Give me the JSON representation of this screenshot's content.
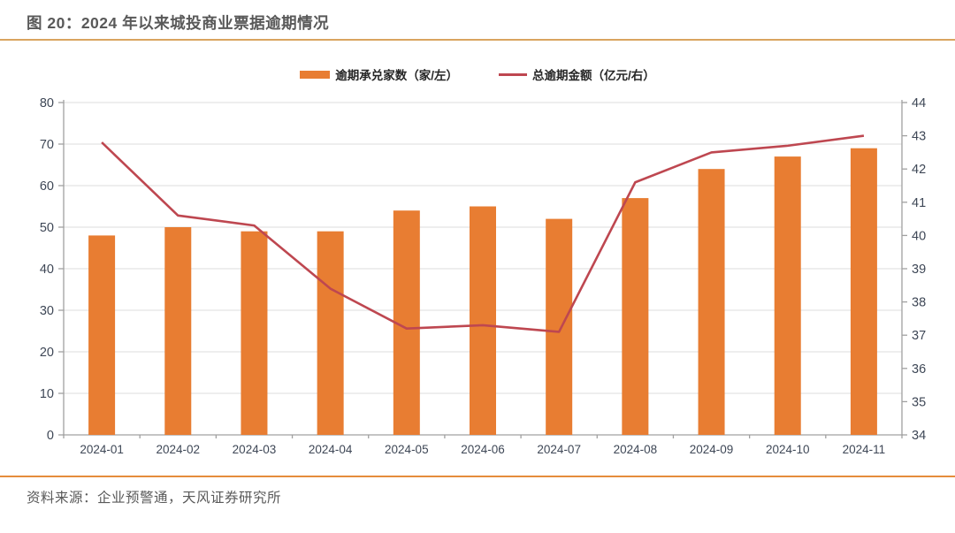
{
  "figure": {
    "title": "图 20：2024 年以来城投商业票据逾期情况",
    "source": "资料来源：企业预警通，天风证券研究所"
  },
  "legend": [
    {
      "label": "逾期承兑家数（家/左）",
      "swatch": "bar-swatch",
      "color": "#E87D32"
    },
    {
      "label": "总逾期金额（亿元/右）",
      "swatch": "line-swatch",
      "color": "#BE4750"
    }
  ],
  "colors": {
    "bar": "#E87D32",
    "line": "#BE4750",
    "grid": "#E8E8E8",
    "axis_line": "#A0A0A0",
    "tick_label": "#3E4756",
    "title_text": "#595959",
    "top_rule": "#D9A45F",
    "bottom_rule": "#E58C3C"
  },
  "chart_data": {
    "type": "bar",
    "subtype": "bar+line-dual-axis",
    "title": "图 20：2024 年以来城投商业票据逾期情况",
    "categories": [
      "2024-01",
      "2024-02",
      "2024-03",
      "2024-04",
      "2024-05",
      "2024-06",
      "2024-07",
      "2024-08",
      "2024-09",
      "2024-10",
      "2024-11"
    ],
    "series": [
      {
        "name": "逾期承兑家数（家/左）",
        "type": "bar",
        "axis": "left",
        "color": "#E87D32",
        "values": [
          48,
          50,
          49,
          49,
          54,
          55,
          52,
          57,
          64,
          67,
          69
        ]
      },
      {
        "name": "总逾期金额（亿元/右）",
        "type": "line",
        "axis": "right",
        "color": "#BE4750",
        "values": [
          42.8,
          40.6,
          40.3,
          38.4,
          37.2,
          37.3,
          37.1,
          41.6,
          42.5,
          42.7,
          43.0
        ]
      }
    ],
    "left_axis": {
      "min": 0,
      "max": 80,
      "step": 10,
      "ticks": [
        "0",
        "10",
        "20",
        "30",
        "40",
        "50",
        "60",
        "70",
        "80"
      ]
    },
    "right_axis": {
      "min": 34,
      "max": 44,
      "step": 1,
      "ticks": [
        "34",
        "35",
        "36",
        "37",
        "38",
        "39",
        "40",
        "41",
        "42",
        "43",
        "44"
      ]
    },
    "grid": true,
    "legend_position": "top"
  }
}
